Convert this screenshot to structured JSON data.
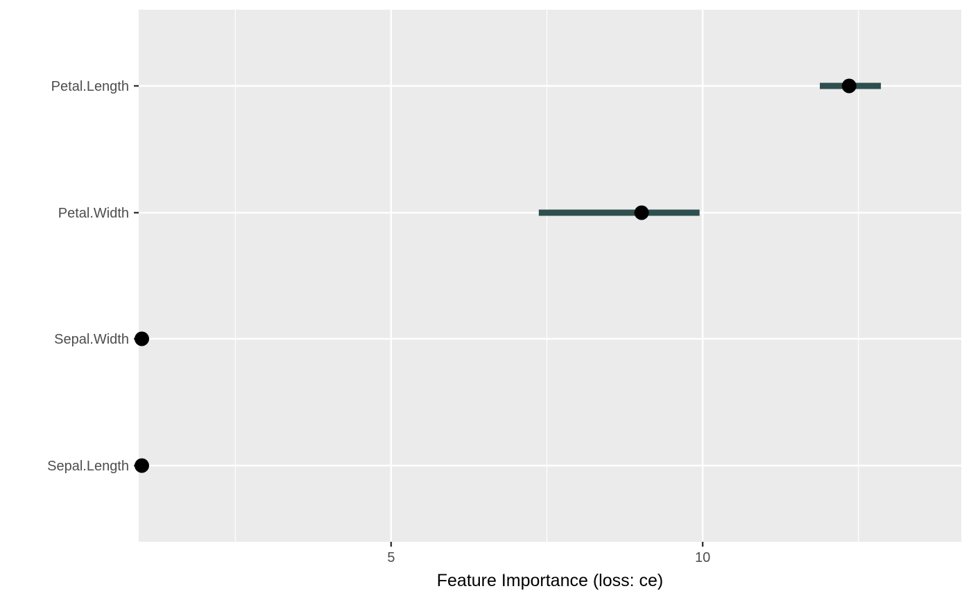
{
  "chart_data": {
    "type": "scatter",
    "title": "",
    "xlabel": "Feature Importance (loss: ce)",
    "ylabel": "",
    "xlim": [
      0.95,
      14.15
    ],
    "x_ticks": [
      5,
      10
    ],
    "x_tick_labels": [
      "5",
      "10"
    ],
    "x_minor_ticks": [
      2.5,
      7.5,
      12.5
    ],
    "categories": [
      "Petal.Length",
      "Petal.Width",
      "Sepal.Width",
      "Sepal.Length"
    ],
    "points": [
      {
        "feature": "Petal.Length",
        "importance": 12.35,
        "lower": 11.88,
        "upper": 12.86
      },
      {
        "feature": "Petal.Width",
        "importance": 9.02,
        "lower": 7.37,
        "upper": 9.95
      },
      {
        "feature": "Sepal.Width",
        "importance": 1.0,
        "lower": 1.0,
        "upper": 1.0
      },
      {
        "feature": "Sepal.Length",
        "importance": 1.0,
        "lower": 1.0,
        "upper": 1.0
      }
    ],
    "grid": true,
    "legend": "none",
    "colors": {
      "panel_background": "#ebebeb",
      "grid": "#ffffff",
      "interval": "#2f4f4f",
      "point": "#000000"
    }
  }
}
